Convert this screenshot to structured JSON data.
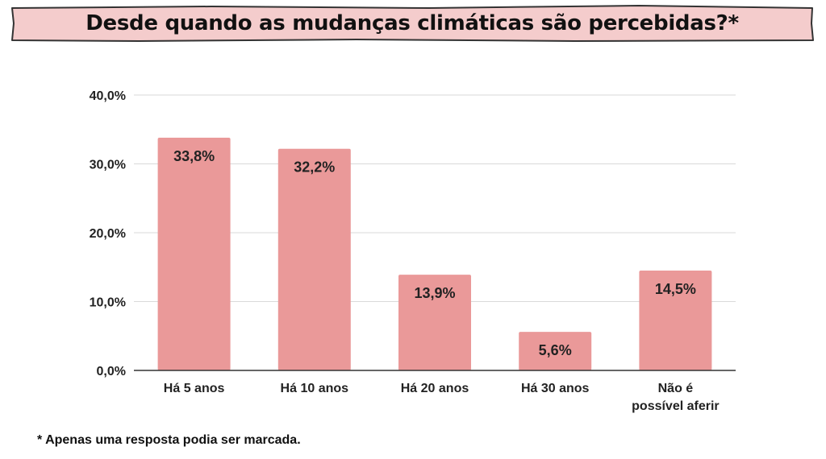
{
  "title": "Desde quando as mudanças climáticas são percebidas?*",
  "footnote": "* Apenas uma resposta podia ser marcada.",
  "colors": {
    "bar": "#ea9999",
    "banner_fill": "#f4cccc",
    "banner_stroke": "#333333",
    "grid": "#d9d9d9",
    "axis": "#333333"
  },
  "chart_data": {
    "type": "bar",
    "categories": [
      [
        "Há 5 anos"
      ],
      [
        "Há 10 anos"
      ],
      [
        "Há 20 anos"
      ],
      [
        "Há 30 anos"
      ],
      [
        "Não é",
        "possível aferir"
      ]
    ],
    "values": [
      33.8,
      32.2,
      13.9,
      5.6,
      14.5
    ],
    "data_labels": [
      "33,8%",
      "32,2%",
      "13,9%",
      "5,6%",
      "14,5%"
    ],
    "ylim": [
      0,
      40
    ],
    "yticks": [
      0,
      10,
      20,
      30,
      40
    ],
    "ytick_labels": [
      "0,0%",
      "10,0%",
      "20,0%",
      "30,0%",
      "40,0%"
    ],
    "grid": true,
    "legend": "none"
  }
}
